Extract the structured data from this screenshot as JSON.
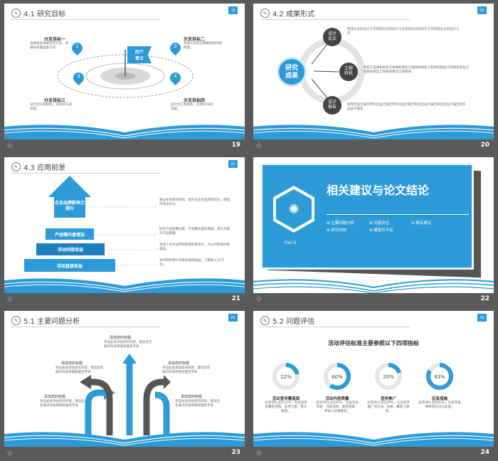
{
  "colors": {
    "accent": "#2d9bd8",
    "dark": "#3c3c3c",
    "frame": "#5a5a5a"
  },
  "slides": [
    {
      "num": "19",
      "badge": "19",
      "title": "4.1 研究目标",
      "center": "四个\n意义",
      "branches": [
        {
          "n": "1",
          "title": "分支目标一",
          "text": "选择适合本研究的方法，并做好前期准备工作。"
        },
        {
          "n": "2",
          "title": "分支目标二",
          "text": "完成论文的主要框架和内容构建。"
        },
        {
          "n": "3",
          "title": "分支目标三",
          "text": "设计出工程样机，实现90%的功能。"
        },
        {
          "n": "4",
          "title": "分支目标四",
          "text": "设计出工程样机，实现90%的功能。"
        }
      ]
    },
    {
      "num": "20",
      "badge": "20",
      "title": "4.2 成果形式",
      "hub": "研究\n成果",
      "items": [
        {
          "label": "设计\n论文",
          "text": "完成论文的设计工作完成论文的设计工作完成论文的设计工作完成论文的设计工作"
        },
        {
          "label": "工程\n样机",
          "text": "制出工程样机制出工程样机制出工程样机制出工程样机制出工程样机制出工程样机制出工程样机制出工程样机"
        },
        {
          "label": "设计\n报告",
          "text": "制作出设计报告制作出设计报告制作出设计报告制作出设计报告制作出设计报告制作出设计报告"
        }
      ]
    },
    {
      "num": "21",
      "badge": "21",
      "title": "4.3 应用前景",
      "tiers": [
        {
          "label": "企业品牌影响力提升",
          "text": "通过本项目的研究，提升企业的品牌影响力，增强市场竞争力。"
        },
        {
          "label": "产品曝光度增加",
          "text": "研究产品的曝光度，产品曝光度的增加，将大力提升产品销量。"
        },
        {
          "label": "活动间接收益",
          "text": "带动了合作伙伴和政府的影响力，为公司带来间接收益。"
        },
        {
          "label": "活动直接收益",
          "text": "本项目的预计带来的直接收益，门票收入20万元。"
        }
      ]
    },
    {
      "num": "22",
      "badge": "",
      "title": "相关建议与论文结论",
      "part": "Part 5",
      "bullets": [
        "主要问题分析",
        "问题评估",
        "相关建议",
        "研究总结",
        "展望与不足"
      ]
    },
    {
      "num": "23",
      "badge": "23",
      "title": "5.1 主要问题分析",
      "notes": [
        {
          "title": "添加您的标题",
          "text": "单击此处添加您的内容，建议您在展示时采用微软雅黑字体"
        },
        {
          "title": "添加您的标题",
          "text": "单击此处添加您的内容，建议您在展示时采用微软雅黑字体"
        },
        {
          "title": "添加您的标题",
          "text": "单击此处添加您的内容，建议您在展示时采用微软雅黑字体"
        },
        {
          "title": "添加您的标题",
          "text": "单击此处添加您的内容，建议您在展示时采用微软雅黑字体"
        },
        {
          "title": "添加您的标题",
          "text": "单击此处添加您的内容，建议您在展示时采用微软雅黑字体"
        }
      ]
    },
    {
      "num": "24",
      "badge": "24",
      "title": "5.2 问题评估",
      "subtitle": "活动评估标准主要参照以下四项指标",
      "metrics": [
        {
          "value": 22,
          "label": "22%",
          "title": "活动宣传覆盖面",
          "text": "此项评价占比22%，包含宣传的覆盖范围、宣传力度、受众数量。"
        },
        {
          "value": 60,
          "label": "60%",
          "title": "活动内容质量",
          "text": "此项评价占比60%，包含活动内容、活动流程、嘉宾演讲、参会人员满意度。"
        },
        {
          "value": 20,
          "label": "20%",
          "title": "宣传推广",
          "text": "此项评价占比20%，包含宣传推广的方式、效果、覆盖人群等。"
        },
        {
          "value": 83,
          "label": "83%",
          "title": "应急措施",
          "text": "此项评价占比83%，包含突发事件的应对与处理。"
        }
      ]
    }
  ]
}
